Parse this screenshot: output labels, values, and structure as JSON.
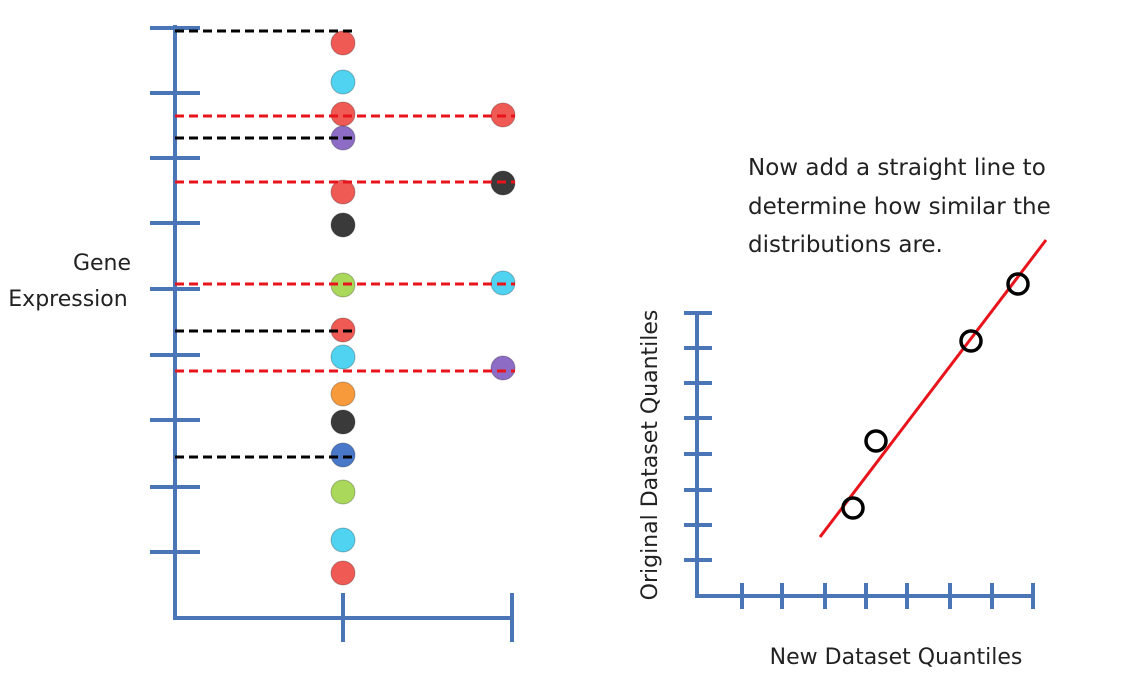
{
  "left_panel": {
    "axis_label": [
      "Gene",
      "Expression"
    ]
  },
  "right_panel": {
    "annotation": [
      "Now add a straight line to",
      "determine how similar the",
      "distributions are."
    ],
    "y_axis_label": "Original Dataset Quantiles",
    "x_axis_label": "New Dataset Quantiles"
  }
}
